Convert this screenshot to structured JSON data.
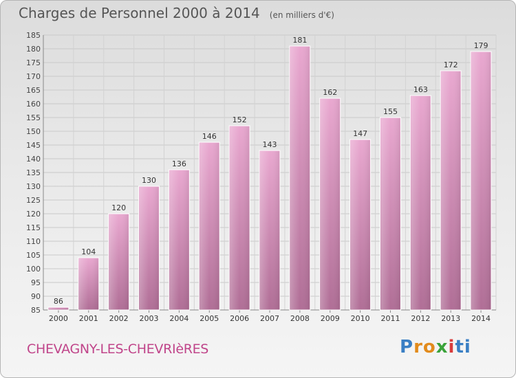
{
  "header": {
    "title": "Charges de Personnel 2000 à 2014",
    "unit": "(en milliers d'€)"
  },
  "footer": {
    "commune": "CHEVAGNY-LES-CHEVRIèRES",
    "logo_letters": [
      "P",
      "r",
      "o",
      "x",
      "i",
      "ti"
    ]
  },
  "colors": {
    "bar_top": "#e9a8d0",
    "bar_bottom": "#b06e96",
    "commune_text": "#c0458a"
  },
  "chart_data": {
    "type": "bar",
    "categories": [
      "2000",
      "2001",
      "2002",
      "2003",
      "2004",
      "2005",
      "2006",
      "2007",
      "2008",
      "2009",
      "2010",
      "2011",
      "2012",
      "2013",
      "2014"
    ],
    "values": [
      86,
      104,
      120,
      130,
      136,
      146,
      152,
      143,
      181,
      162,
      147,
      155,
      163,
      172,
      179
    ],
    "ylim": [
      85,
      185
    ],
    "yticks": [
      85,
      90,
      95,
      100,
      105,
      110,
      115,
      120,
      125,
      130,
      135,
      140,
      145,
      150,
      155,
      160,
      165,
      170,
      175,
      180,
      185
    ],
    "grid": true,
    "data_labels": true
  }
}
